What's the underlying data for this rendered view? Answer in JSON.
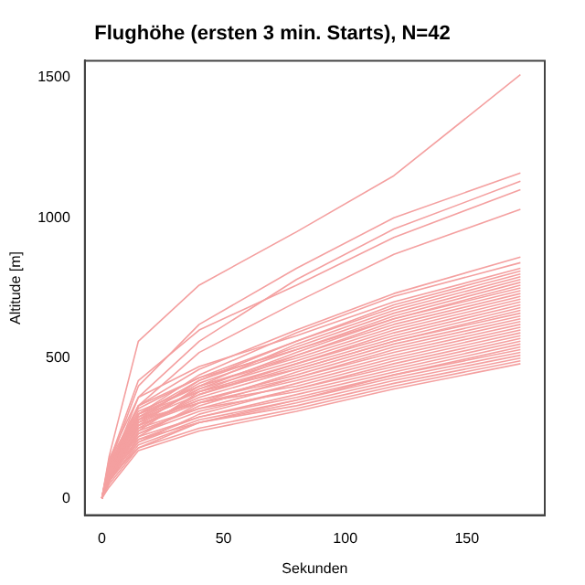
{
  "chart_data": {
    "type": "line",
    "title": "Flughöhe (ersten 3 min. Starts), N=42",
    "xlabel": "Sekunden",
    "ylabel": "Altitude [m]",
    "x": [
      0,
      3,
      15,
      40,
      80,
      120,
      172
    ],
    "color": "#f4a0a0",
    "xlim": [
      -7,
      182
    ],
    "ylim": [
      -60,
      1560
    ],
    "xticks": [
      0,
      50,
      100,
      150
    ],
    "yticks": [
      0,
      500,
      1000,
      1500
    ],
    "grid": false,
    "legend": false,
    "marker": "none",
    "line_style": "solid",
    "series": [
      {
        "values": [
          0,
          150,
          560,
          760,
          950,
          1150,
          1510
        ]
      },
      {
        "values": [
          0,
          120,
          400,
          620,
          820,
          1000,
          1160
        ]
      },
      {
        "values": [
          0,
          100,
          360,
          560,
          780,
          960,
          1130
        ]
      },
      {
        "values": [
          0,
          130,
          420,
          600,
          760,
          930,
          1100
        ]
      },
      {
        "values": [
          0,
          90,
          330,
          520,
          700,
          870,
          1030
        ]
      },
      {
        "values": [
          0,
          110,
          330,
          460,
          600,
          730,
          860
        ]
      },
      {
        "values": [
          0,
          80,
          300,
          440,
          590,
          720,
          840
        ]
      },
      {
        "values": [
          0,
          140,
          360,
          470,
          580,
          700,
          820
        ]
      },
      {
        "values": [
          0,
          100,
          280,
          420,
          560,
          690,
          810
        ]
      },
      {
        "values": [
          0,
          120,
          320,
          430,
          560,
          680,
          800
        ]
      },
      {
        "values": [
          0,
          70,
          260,
          400,
          550,
          670,
          790
        ]
      },
      {
        "values": [
          0,
          110,
          300,
          420,
          540,
          660,
          780
        ]
      },
      {
        "values": [
          0,
          90,
          290,
          410,
          530,
          650,
          770
        ]
      },
      {
        "values": [
          0,
          130,
          330,
          430,
          530,
          640,
          760
        ]
      },
      {
        "values": [
          0,
          80,
          270,
          390,
          520,
          640,
          750
        ]
      },
      {
        "values": [
          0,
          100,
          300,
          400,
          510,
          630,
          740
        ]
      },
      {
        "values": [
          0,
          60,
          240,
          380,
          510,
          620,
          730
        ]
      },
      {
        "values": [
          0,
          120,
          310,
          400,
          500,
          610,
          720
        ]
      },
      {
        "values": [
          0,
          90,
          280,
          390,
          490,
          600,
          710
        ]
      },
      {
        "values": [
          0,
          110,
          290,
          380,
          480,
          590,
          700
        ]
      },
      {
        "values": [
          0,
          70,
          250,
          370,
          480,
          580,
          690
        ]
      },
      {
        "values": [
          0,
          100,
          280,
          370,
          470,
          570,
          680
        ]
      },
      {
        "values": [
          0,
          80,
          260,
          360,
          460,
          560,
          670
        ]
      },
      {
        "values": [
          0,
          120,
          300,
          380,
          460,
          560,
          660
        ]
      },
      {
        "values": [
          0,
          60,
          220,
          340,
          450,
          550,
          650
        ]
      },
      {
        "values": [
          0,
          90,
          260,
          350,
          440,
          540,
          640
        ]
      },
      {
        "values": [
          0,
          110,
          270,
          350,
          430,
          530,
          630
        ]
      },
      {
        "values": [
          0,
          70,
          230,
          330,
          430,
          520,
          620
        ]
      },
      {
        "values": [
          0,
          100,
          260,
          340,
          420,
          510,
          610
        ]
      },
      {
        "values": [
          0,
          80,
          240,
          320,
          410,
          500,
          600
        ]
      },
      {
        "values": [
          0,
          130,
          280,
          340,
          400,
          490,
          590
        ]
      },
      {
        "values": [
          0,
          60,
          200,
          300,
          390,
          480,
          580
        ]
      },
      {
        "values": [
          0,
          90,
          230,
          310,
          390,
          470,
          570
        ]
      },
      {
        "values": [
          0,
          110,
          250,
          320,
          380,
          460,
          560
        ]
      },
      {
        "values": [
          0,
          70,
          210,
          290,
          370,
          450,
          550
        ]
      },
      {
        "values": [
          0,
          100,
          220,
          290,
          360,
          440,
          540
        ]
      },
      {
        "values": [
          0,
          50,
          180,
          270,
          350,
          440,
          530
        ]
      },
      {
        "values": [
          0,
          80,
          200,
          280,
          350,
          430,
          520
        ]
      },
      {
        "values": [
          0,
          60,
          190,
          270,
          340,
          420,
          510
        ]
      },
      {
        "values": [
          0,
          90,
          210,
          270,
          330,
          410,
          500
        ]
      },
      {
        "values": [
          0,
          70,
          180,
          250,
          320,
          400,
          490
        ]
      },
      {
        "values": [
          0,
          40,
          170,
          240,
          310,
          390,
          480
        ]
      }
    ]
  }
}
